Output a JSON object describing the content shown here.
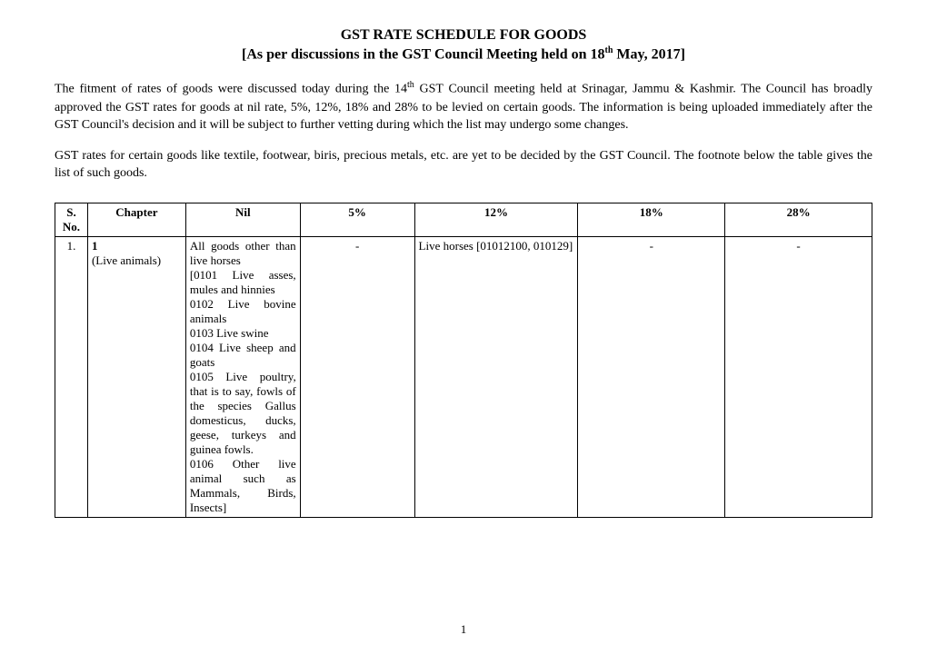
{
  "header": {
    "title": "GST RATE SCHEDULE FOR GOODS",
    "subtitle_prefix": "[As per discussions in the GST Council Meeting held on 18",
    "subtitle_sup": "th",
    "subtitle_suffix": " May, 2017]"
  },
  "paragraphs": {
    "p1_part1": "The fitment of rates of goods were discussed today during the 14",
    "p1_sup": "th",
    "p1_part2": " GST Council meeting held at Srinagar, Jammu & Kashmir. The Council has broadly approved the GST rates for goods at nil rate, 5%, 12%, 18% and 28% to be levied on certain goods. The information is being uploaded immediately after the GST Council's decision and it will be subject to further vetting during which the list may undergo some changes.",
    "p2": "GST rates for certain goods like textile, footwear, biris, precious metals, etc. are yet to be decided by the GST Council. The footnote below the table gives the list of such goods."
  },
  "table": {
    "columns": {
      "sno": "S. No.",
      "chapter": "Chapter",
      "nil": "Nil",
      "pct5": "5%",
      "pct12": "12%",
      "pct18": "18%",
      "pct28": "28%"
    },
    "rows": [
      {
        "sno": "1.",
        "chapter_num": "1",
        "chapter_name": "(Live animals)",
        "nil": "All goods other than live horses\n[0101 Live asses, mules and hinnies\n0102 Live bovine animals\n0103 Live swine\n0104 Live sheep and goats\n0105 Live poultry, that is to say, fowls of the species Gallus domesticus, ducks, geese, turkeys and guinea fowls.\n0106 Other live animal such as Mammals, Birds, Insects]",
        "pct5": "-",
        "pct12": "Live horses [01012100, 010129]",
        "pct18": "-",
        "pct28": "-"
      }
    ]
  },
  "page_number": "1",
  "styles": {
    "background_color": "#ffffff",
    "text_color": "#000000",
    "border_color": "#000000",
    "title_fontsize": 16,
    "body_fontsize": 14,
    "table_fontsize": 13,
    "font_family": "Times New Roman"
  }
}
